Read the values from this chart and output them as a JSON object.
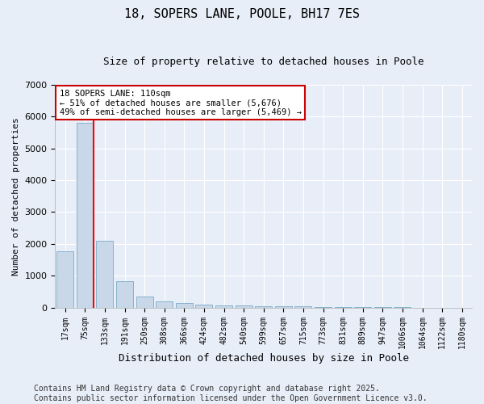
{
  "title_line1": "18, SOPERS LANE, POOLE, BH17 7ES",
  "title_line2": "Size of property relative to detached houses in Poole",
  "xlabel": "Distribution of detached houses by size in Poole",
  "ylabel": "Number of detached properties",
  "bar_color": "#c8d8e8",
  "bar_edge_color": "#7aaac8",
  "background_color": "#e8eef8",
  "grid_color": "#ffffff",
  "categories": [
    "17sqm",
    "75sqm",
    "133sqm",
    "191sqm",
    "250sqm",
    "308sqm",
    "366sqm",
    "424sqm",
    "482sqm",
    "540sqm",
    "599sqm",
    "657sqm",
    "715sqm",
    "773sqm",
    "831sqm",
    "889sqm",
    "947sqm",
    "1006sqm",
    "1064sqm",
    "1122sqm",
    "1180sqm"
  ],
  "values": [
    1780,
    5810,
    2090,
    820,
    340,
    200,
    130,
    90,
    70,
    60,
    45,
    35,
    30,
    10,
    5,
    5,
    3,
    3,
    2,
    2,
    2
  ],
  "red_line_x": 1.42,
  "ylim": [
    0,
    7000
  ],
  "annotation_title": "18 SOPERS LANE: 110sqm",
  "annotation_line2": "← 51% of detached houses are smaller (5,676)",
  "annotation_line3": "49% of semi-detached houses are larger (5,469) →",
  "footer_line1": "Contains HM Land Registry data © Crown copyright and database right 2025.",
  "footer_line2": "Contains public sector information licensed under the Open Government Licence v3.0.",
  "annotation_box_color": "#cc0000",
  "title_fontsize": 11,
  "subtitle_fontsize": 9,
  "tick_fontsize": 7,
  "ylabel_fontsize": 8,
  "xlabel_fontsize": 9,
  "footer_fontsize": 7,
  "annotation_fontsize": 7.5
}
